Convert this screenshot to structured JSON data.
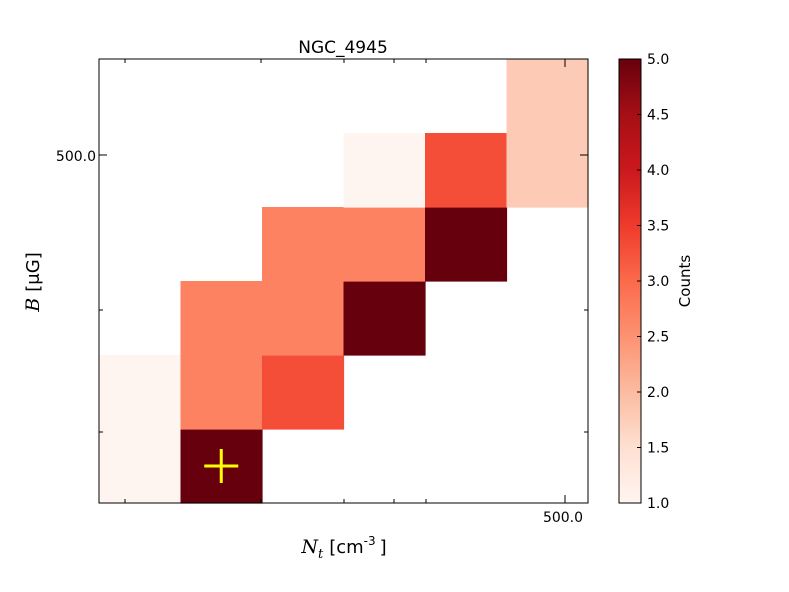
{
  "chart_data": {
    "type": "heatmap",
    "title": "NGC_4945",
    "xlabel": {
      "symbol": "N",
      "sub": "t",
      "unit": "[cm",
      "exp": "-3",
      "close": "]"
    },
    "ylabel": {
      "symbol": "B",
      "unit": "[μG]"
    },
    "x_tick_labels": [
      "500.0"
    ],
    "y_tick_labels": [
      "500.0"
    ],
    "grid_cols": 6,
    "grid_rows": 6,
    "cells": [
      {
        "col": 0,
        "row": 0,
        "value": 1
      },
      {
        "col": 0,
        "row": 1,
        "value": 1
      },
      {
        "col": 1,
        "row": 0,
        "value": 5
      },
      {
        "col": 1,
        "row": 1,
        "value": 2.7
      },
      {
        "col": 1,
        "row": 2,
        "value": 2.7
      },
      {
        "col": 2,
        "row": 1,
        "value": 3.3
      },
      {
        "col": 2,
        "row": 2,
        "value": 2.7
      },
      {
        "col": 2,
        "row": 3,
        "value": 2.7
      },
      {
        "col": 3,
        "row": 2,
        "value": 5
      },
      {
        "col": 3,
        "row": 3,
        "value": 2.7
      },
      {
        "col": 3,
        "row": 4,
        "value": 1
      },
      {
        "col": 4,
        "row": 3,
        "value": 5
      },
      {
        "col": 4,
        "row": 4,
        "value": 3.3
      },
      {
        "col": 5,
        "row": 4,
        "value": 1.8
      },
      {
        "col": 5,
        "row": 5,
        "value": 1.8
      }
    ],
    "marker": {
      "col": 1.5,
      "row": 0.5,
      "symbol": "+",
      "color": "#ffff00"
    },
    "colorbar": {
      "label": "Counts",
      "min": 1.0,
      "max": 5.0,
      "tick_labels": [
        "1.0",
        "1.5",
        "2.0",
        "2.5",
        "3.0",
        "3.5",
        "4.0",
        "4.5",
        "5.0"
      ],
      "colormap": "Reds"
    },
    "grid": false
  }
}
